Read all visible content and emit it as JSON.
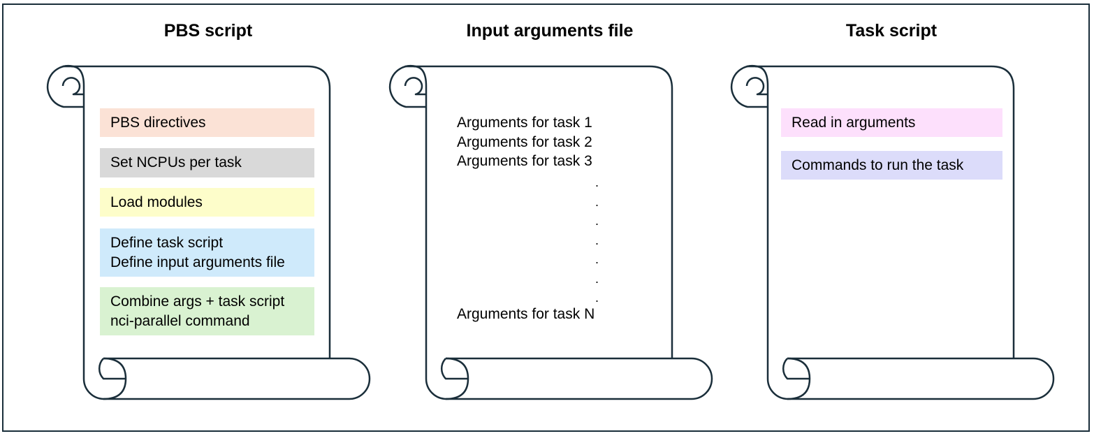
{
  "panels": {
    "pbs": {
      "title": "PBS script",
      "boxes": [
        {
          "lines": [
            "PBS directives"
          ],
          "color": "#fbe2d6"
        },
        {
          "lines": [
            "Set NCPUs per task"
          ],
          "color": "#d9d9d9"
        },
        {
          "lines": [
            "Load modules"
          ],
          "color": "#fdfdca"
        },
        {
          "lines": [
            "Define task script",
            "Define input arguments file"
          ],
          "color": "#cfeafb"
        },
        {
          "lines": [
            "Combine args + task script",
            "nci-parallel command"
          ],
          "color": "#d9f2d1"
        }
      ]
    },
    "input": {
      "title": "Input arguments file",
      "lines": [
        "Arguments for task 1",
        "Arguments for task 2",
        "Arguments for task 3"
      ],
      "dots": [
        ".",
        ".",
        ".",
        ".",
        ".",
        ".",
        "."
      ],
      "last_line": "Arguments for task N"
    },
    "task": {
      "title": "Task script",
      "boxes": [
        {
          "lines": [
            "Read in arguments"
          ],
          "color": "#fde0fc"
        },
        {
          "lines": [
            "Commands to run the task"
          ],
          "color": "#dcdcfa"
        }
      ]
    }
  },
  "colors": {
    "outline": "#1a2e3a"
  }
}
